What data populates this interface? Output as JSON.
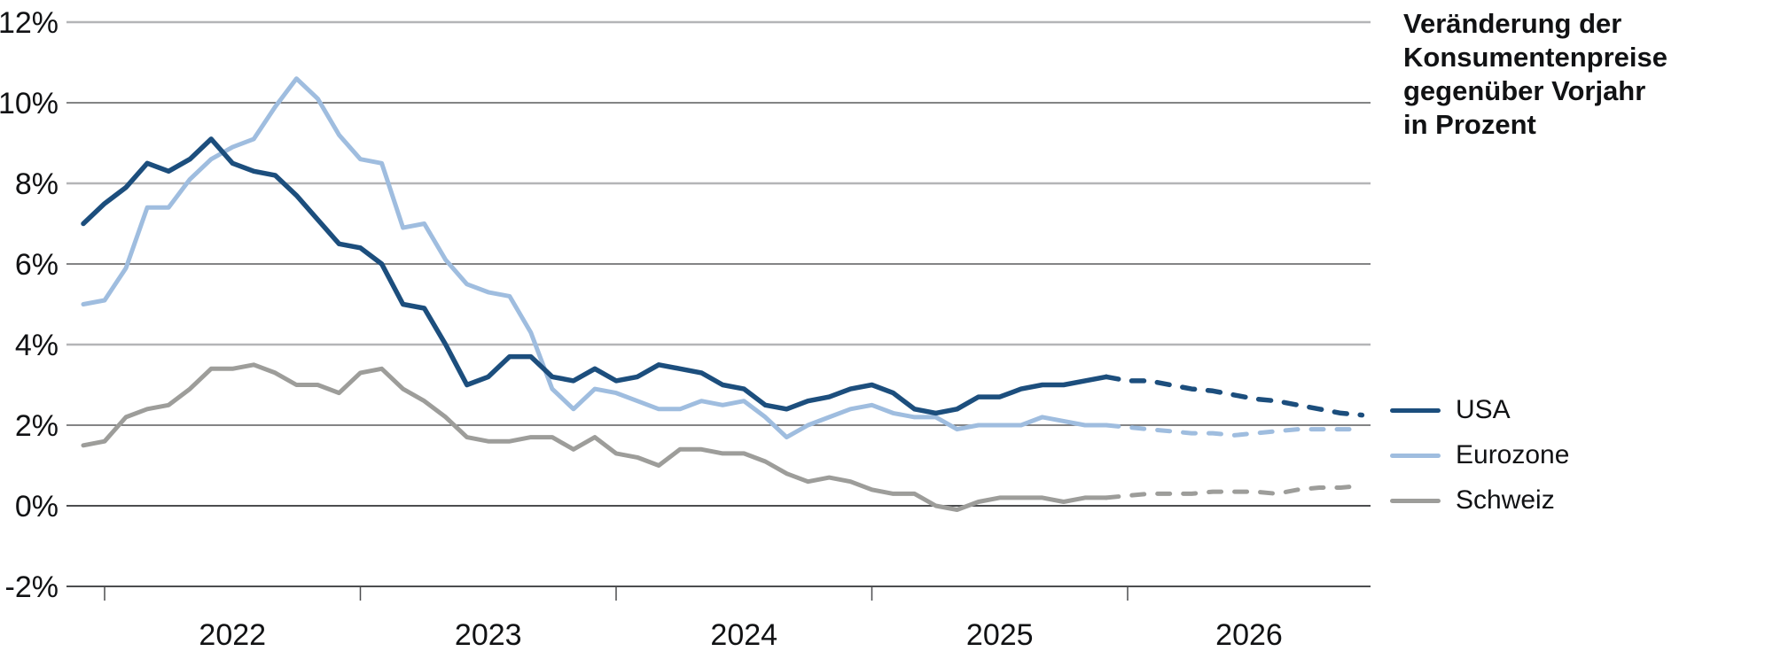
{
  "title": {
    "lines": [
      "Veränderung der",
      "Konsumentenpreise",
      "gegenüber Vorjahr",
      "in Prozent"
    ]
  },
  "legend": [
    {
      "label": "USA",
      "color": "#1c4e7d"
    },
    {
      "label": "Eurozone",
      "color": "#9fbddf"
    },
    {
      "label": "Schweiz",
      "color": "#9d9d9a"
    }
  ],
  "y_axis": {
    "tick_labels": [
      "12%",
      "10%",
      "8%",
      "6%",
      "4%",
      "2%",
      "0%",
      "-2%"
    ],
    "tick_values": [
      12,
      10,
      8,
      6,
      4,
      2,
      0,
      -2
    ]
  },
  "x_axis": {
    "tick_labels": [
      "2022",
      "2023",
      "2024",
      "2025",
      "2026"
    ]
  },
  "colors": {
    "gridline_light": "#b4b5b7",
    "gridline_dark": "#5a5b5d",
    "axis": "#4c4d4f",
    "text": "#111214"
  },
  "chart_data": {
    "type": "line",
    "title": "Veränderung der Konsumentenpreise gegenüber Vorjahr in Prozent",
    "ylabel": "Prozent",
    "ylim": [
      -2,
      12
    ],
    "grid": "horizontal",
    "legend_position": "right",
    "frequency": "monthly",
    "x_start": "2021-12",
    "x_end": "2026-12",
    "forecast_start": "2026-01",
    "forecast_style": "dashed",
    "series": [
      {
        "name": "USA",
        "color": "#1c4e7d",
        "solid": [
          7.0,
          7.5,
          7.9,
          8.5,
          8.3,
          8.6,
          9.1,
          8.5,
          8.3,
          8.2,
          7.7,
          7.1,
          6.5,
          6.4,
          6.0,
          5.0,
          4.9,
          4.0,
          3.0,
          3.2,
          3.7,
          3.7,
          3.2,
          3.1,
          3.4,
          3.1,
          3.2,
          3.5,
          3.4,
          3.3,
          3.0,
          2.9,
          2.5,
          2.4,
          2.6,
          2.7,
          2.9,
          3.0,
          2.8,
          2.4,
          2.3,
          2.4,
          2.7,
          2.7,
          2.9,
          3.0,
          3.0,
          3.1,
          3.2
        ],
        "forecast": [
          3.1,
          3.1,
          3.0,
          2.9,
          2.85,
          2.75,
          2.65,
          2.6,
          2.5,
          2.4,
          2.3,
          2.25
        ]
      },
      {
        "name": "Eurozone",
        "color": "#9fbddf",
        "solid": [
          5.0,
          5.1,
          5.9,
          7.4,
          7.4,
          8.1,
          8.6,
          8.9,
          9.1,
          9.9,
          10.6,
          10.1,
          9.2,
          8.6,
          8.5,
          6.9,
          7.0,
          6.1,
          5.5,
          5.3,
          5.2,
          4.3,
          2.9,
          2.4,
          2.9,
          2.8,
          2.6,
          2.4,
          2.4,
          2.6,
          2.5,
          2.6,
          2.2,
          1.7,
          2.0,
          2.2,
          2.4,
          2.5,
          2.3,
          2.2,
          2.2,
          1.9,
          2.0,
          2.0,
          2.0,
          2.2,
          2.1,
          2.0,
          2.0
        ],
        "forecast": [
          1.95,
          1.9,
          1.85,
          1.8,
          1.8,
          1.75,
          1.8,
          1.85,
          1.9,
          1.9,
          1.9,
          1.9
        ]
      },
      {
        "name": "Schweiz",
        "color": "#9d9d9a",
        "solid": [
          1.5,
          1.6,
          2.2,
          2.4,
          2.5,
          2.9,
          3.4,
          3.4,
          3.5,
          3.3,
          3.0,
          3.0,
          2.8,
          3.3,
          3.4,
          2.9,
          2.6,
          2.2,
          1.7,
          1.6,
          1.6,
          1.7,
          1.7,
          1.4,
          1.7,
          1.3,
          1.2,
          1.0,
          1.4,
          1.4,
          1.3,
          1.3,
          1.1,
          0.8,
          0.6,
          0.7,
          0.6,
          0.4,
          0.3,
          0.3,
          0.0,
          -0.1,
          0.1,
          0.2,
          0.2,
          0.2,
          0.1,
          0.2,
          0.2
        ],
        "forecast": [
          0.25,
          0.3,
          0.3,
          0.3,
          0.35,
          0.35,
          0.35,
          0.3,
          0.4,
          0.45,
          0.45,
          0.5
        ]
      }
    ]
  }
}
